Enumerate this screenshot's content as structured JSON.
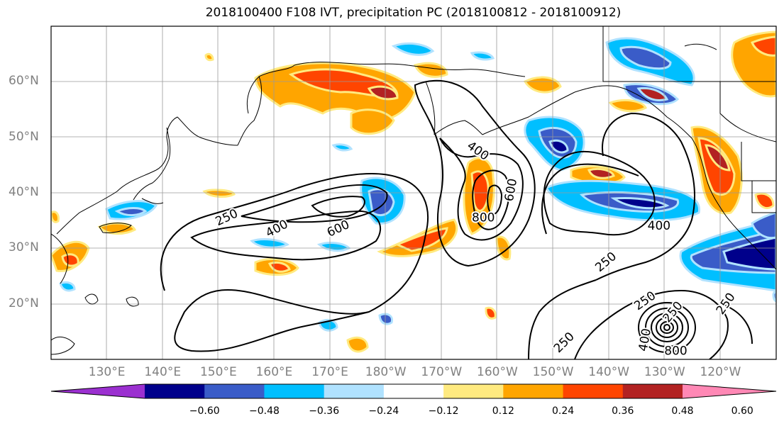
{
  "title": "2018100400 F108 IVT, precipitation PC (2018100812 - 2018100912)",
  "map": {
    "projection": "PlateCarree",
    "lon_range_east": [
      120,
      250
    ],
    "lat_range": [
      10,
      70
    ],
    "gridlines": true,
    "lat_ticks": [
      {
        "lat": 60,
        "label": "60°N"
      },
      {
        "lat": 50,
        "label": "50°N"
      },
      {
        "lat": 40,
        "label": "40°N"
      },
      {
        "lat": 30,
        "label": "30°N"
      },
      {
        "lat": 20,
        "label": "20°N"
      }
    ],
    "lon_ticks": [
      {
        "lon": 130,
        "label": "130°E"
      },
      {
        "lon": 140,
        "label": "140°E"
      },
      {
        "lon": 150,
        "label": "150°E"
      },
      {
        "lon": 160,
        "label": "160°E"
      },
      {
        "lon": 170,
        "label": "170°E"
      },
      {
        "lon": 180,
        "label": "180°W"
      },
      {
        "lon": 190,
        "label": "170°W"
      },
      {
        "lon": 200,
        "label": "160°W"
      },
      {
        "lon": 210,
        "label": "150°W"
      },
      {
        "lon": 220,
        "label": "140°W"
      },
      {
        "lon": 230,
        "label": "130°W"
      },
      {
        "lon": 240,
        "label": "120°W"
      }
    ],
    "ivt_contour_labels": [
      {
        "text": "250",
        "lon": 151.5,
        "lat": 35.5,
        "rot": -25
      },
      {
        "text": "400",
        "lon": 160.5,
        "lat": 33.5,
        "rot": -28
      },
      {
        "text": "600",
        "lon": 171.5,
        "lat": 33.5,
        "rot": -25
      },
      {
        "text": "400",
        "lon": 196.5,
        "lat": 47.5,
        "rot": 35
      },
      {
        "text": "600",
        "lon": 202.5,
        "lat": 40.5,
        "rot": -80
      },
      {
        "text": "800",
        "lon": 197.5,
        "lat": 35.5,
        "rot": 0
      },
      {
        "text": "400",
        "lon": 229,
        "lat": 34,
        "rot": 0
      },
      {
        "text": "250",
        "lon": 219.5,
        "lat": 27.5,
        "rot": -40
      },
      {
        "text": "250",
        "lon": 226.5,
        "lat": 20.5,
        "rot": -35
      },
      {
        "text": "250",
        "lon": 231.5,
        "lat": 18.5,
        "rot": -50
      },
      {
        "text": "250",
        "lon": 212,
        "lat": 13,
        "rot": -45
      },
      {
        "text": "800",
        "lon": 232,
        "lat": 11.5,
        "rot": 0
      },
      {
        "text": "400",
        "lon": 226.5,
        "lat": 13.5,
        "rot": -80
      },
      {
        "text": "250",
        "lon": 241,
        "lat": 20,
        "rot": -55
      }
    ]
  },
  "colorbar": {
    "colors": [
      "#9b30d0",
      "#00008b",
      "#3a5cc8",
      "#00bfff",
      "#b0e2ff",
      "#ffffff",
      "#ffea80",
      "#ffa500",
      "#ff4500",
      "#b22222",
      "#ff88b5"
    ],
    "tick_values": [
      "−0.60",
      "−0.48",
      "−0.36",
      "−0.24",
      "−0.12",
      "0.12",
      "0.24",
      "0.36",
      "0.48",
      "0.60"
    ]
  }
}
